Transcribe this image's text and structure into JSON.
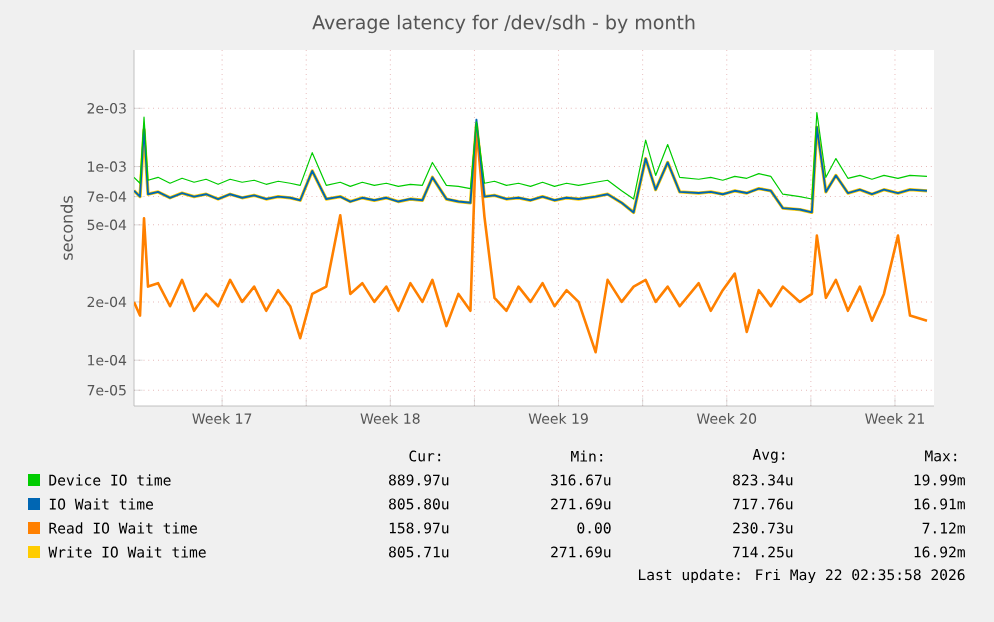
{
  "chart_data": {
    "type": "line",
    "title": "Average latency for /dev/sdh - by month",
    "ylabel": "seconds",
    "log": "y",
    "grid": true,
    "legend": "bottom",
    "xlim": [
      "2026-04-19T20:00",
      "2026-05-23T03:00"
    ],
    "ylim": [
      5.8e-05,
      0.004
    ],
    "xticks": [
      {
        "value": "2026-04-23T12:00",
        "label": "Week 17"
      },
      {
        "value": "2026-04-27T00:00",
        "label": null
      },
      {
        "value": "2026-04-30T12:00",
        "label": "Week 18"
      },
      {
        "value": "2026-05-04T00:00",
        "label": null
      },
      {
        "value": "2026-05-07T12:00",
        "label": "Week 19"
      },
      {
        "value": "2026-05-11T00:00",
        "label": null
      },
      {
        "value": "2026-05-14T12:00",
        "label": "Week 20"
      },
      {
        "value": "2026-05-18T00:00",
        "label": null
      },
      {
        "value": "2026-05-21T12:00",
        "label": "Week 21"
      }
    ],
    "yticks": [
      {
        "value": 7e-05,
        "label": "7e-05"
      },
      {
        "value": 0.0001,
        "label": "1e-04"
      },
      {
        "value": 0.0002,
        "label": "2e-04"
      },
      {
        "value": 0.0005,
        "label": "5e-04"
      },
      {
        "value": 0.0007,
        "label": "7e-04"
      },
      {
        "value": 0.001,
        "label": "1e-03"
      },
      {
        "value": 0.002,
        "label": "2e-03"
      }
    ],
    "x": [
      "2026-04-19T20:00",
      "2026-04-20T02:00",
      "2026-04-20T06:00",
      "2026-04-20T10:00",
      "2026-04-20T20:00",
      "2026-04-21T08:00",
      "2026-04-21T20:00",
      "2026-04-22T08:00",
      "2026-04-22T20:00",
      "2026-04-23T08:00",
      "2026-04-23T20:00",
      "2026-04-24T08:00",
      "2026-04-24T20:00",
      "2026-04-25T08:00",
      "2026-04-25T20:00",
      "2026-04-26T08:00",
      "2026-04-26T18:00",
      "2026-04-27T06:00",
      "2026-04-27T20:00",
      "2026-04-28T10:00",
      "2026-04-28T20:00",
      "2026-04-29T08:00",
      "2026-04-29T20:00",
      "2026-04-30T08:00",
      "2026-04-30T20:00",
      "2026-05-01T08:00",
      "2026-05-01T20:00",
      "2026-05-02T06:00",
      "2026-05-02T20:00",
      "2026-05-03T08:00",
      "2026-05-03T20:00",
      "2026-05-04T02:00",
      "2026-05-04T10:00",
      "2026-05-04T20:00",
      "2026-05-05T08:00",
      "2026-05-05T20:00",
      "2026-05-06T08:00",
      "2026-05-06T20:00",
      "2026-05-07T08:00",
      "2026-05-07T20:00",
      "2026-05-08T08:00",
      "2026-05-09T01:00",
      "2026-05-09T13:00",
      "2026-05-10T03:00",
      "2026-05-10T15:00",
      "2026-05-11T03:00",
      "2026-05-11T13:00",
      "2026-05-12T01:00",
      "2026-05-12T13:00",
      "2026-05-13T08:00",
      "2026-05-13T20:00",
      "2026-05-14T08:00",
      "2026-05-14T20:00",
      "2026-05-15T08:00",
      "2026-05-15T20:00",
      "2026-05-16T08:00",
      "2026-05-16T20:00",
      "2026-05-17T13:00",
      "2026-05-18T01:00",
      "2026-05-18T06:00",
      "2026-05-18T15:00",
      "2026-05-19T01:00",
      "2026-05-19T13:00",
      "2026-05-20T01:00",
      "2026-05-20T13:00",
      "2026-05-21T01:00",
      "2026-05-21T15:00",
      "2026-05-22T03:00",
      "2026-05-22T20:00"
    ],
    "series": [
      {
        "name": "Device IO time",
        "color": "#00cc00",
        "values": [
          0.00088,
          0.00082,
          0.0018,
          0.00085,
          0.00088,
          0.00082,
          0.00087,
          0.00083,
          0.00086,
          0.00081,
          0.00086,
          0.00083,
          0.00085,
          0.00081,
          0.00084,
          0.00082,
          0.0008,
          0.00118,
          0.0008,
          0.00083,
          0.00079,
          0.00083,
          0.0008,
          0.00082,
          0.00079,
          0.00081,
          0.0008,
          0.00105,
          0.0008,
          0.00079,
          0.00077,
          0.0017,
          0.00082,
          0.00084,
          0.0008,
          0.00082,
          0.00079,
          0.00083,
          0.00079,
          0.00082,
          0.0008,
          0.00083,
          0.00085,
          0.00075,
          0.00068,
          0.00137,
          0.0009,
          0.0013,
          0.00088,
          0.00086,
          0.00088,
          0.00085,
          0.00089,
          0.00087,
          0.00092,
          0.00089,
          0.00072,
          0.0007,
          0.00068,
          0.0019,
          0.00088,
          0.0011,
          0.00087,
          0.0009,
          0.00086,
          0.0009,
          0.00087,
          0.0009,
          0.00089
        ]
      },
      {
        "name": "IO Wait time",
        "color": "#0066b3",
        "values": [
          0.00075,
          0.0007,
          0.0016,
          0.00072,
          0.00074,
          0.00069,
          0.00073,
          0.0007,
          0.00072,
          0.00068,
          0.00072,
          0.00069,
          0.00071,
          0.00068,
          0.0007,
          0.00069,
          0.00067,
          0.00095,
          0.00068,
          0.0007,
          0.00066,
          0.00069,
          0.00067,
          0.00069,
          0.00066,
          0.00068,
          0.00067,
          0.00088,
          0.00068,
          0.00066,
          0.00065,
          0.00175,
          0.0007,
          0.00071,
          0.00068,
          0.00069,
          0.00067,
          0.0007,
          0.00067,
          0.00069,
          0.00068,
          0.0007,
          0.00072,
          0.00065,
          0.00058,
          0.0011,
          0.00076,
          0.00105,
          0.00074,
          0.00073,
          0.00074,
          0.00072,
          0.00075,
          0.00073,
          0.00077,
          0.00075,
          0.00061,
          0.0006,
          0.00058,
          0.0016,
          0.00074,
          0.0009,
          0.00073,
          0.00076,
          0.00072,
          0.00076,
          0.00073,
          0.00076,
          0.00075
        ]
      },
      {
        "name": "Read IO Wait time",
        "color": "#ff8000",
        "values": [
          0.0002,
          0.00017,
          0.00054,
          0.00024,
          0.00025,
          0.00019,
          0.00026,
          0.00018,
          0.00022,
          0.00019,
          0.00026,
          0.0002,
          0.00024,
          0.00018,
          0.00023,
          0.00019,
          0.00013,
          0.00022,
          0.00024,
          0.00056,
          0.00022,
          0.00025,
          0.0002,
          0.00024,
          0.00018,
          0.00025,
          0.0002,
          0.00026,
          0.00015,
          0.00022,
          0.00018,
          0.0016,
          0.00055,
          0.00021,
          0.00018,
          0.00024,
          0.0002,
          0.00025,
          0.00019,
          0.00023,
          0.0002,
          0.00011,
          0.00026,
          0.0002,
          0.00024,
          0.00026,
          0.0002,
          0.00024,
          0.00019,
          0.00025,
          0.00018,
          0.00023,
          0.00028,
          0.00014,
          0.00023,
          0.00019,
          0.00024,
          0.0002,
          0.00022,
          0.00044,
          0.00021,
          0.00026,
          0.00018,
          0.00024,
          0.00016,
          0.00022,
          0.00044,
          0.00017,
          0.00016
        ]
      },
      {
        "name": "Write IO Wait time",
        "color": "#ffcc00",
        "values": [
          0.00075,
          0.0007,
          0.00155,
          0.00072,
          0.00074,
          0.00069,
          0.00073,
          0.0007,
          0.00072,
          0.00068,
          0.00072,
          0.00069,
          0.00071,
          0.00068,
          0.0007,
          0.00069,
          0.00067,
          0.00095,
          0.00068,
          0.0007,
          0.00066,
          0.00069,
          0.00067,
          0.00069,
          0.00066,
          0.00068,
          0.00067,
          0.00088,
          0.00068,
          0.00066,
          0.00065,
          0.00165,
          0.0007,
          0.00071,
          0.00068,
          0.00069,
          0.00067,
          0.0007,
          0.00067,
          0.00069,
          0.00068,
          0.0007,
          0.00072,
          0.00065,
          0.00058,
          0.0011,
          0.00076,
          0.00105,
          0.00074,
          0.00073,
          0.00074,
          0.00072,
          0.00075,
          0.00073,
          0.00077,
          0.00075,
          0.00061,
          0.0006,
          0.00058,
          0.0016,
          0.00074,
          0.0009,
          0.00073,
          0.00076,
          0.00072,
          0.00076,
          0.00073,
          0.00076,
          0.00075
        ]
      }
    ],
    "annotations": [
      "Cur:",
      "Min:",
      "Avg:",
      "Max:",
      "889.97u",
      "316.67u",
      "823.34u",
      "19.99m",
      "805.80u",
      "271.69u",
      "717.76u",
      "16.91m",
      "158.97u",
      "0.00",
      "230.73u",
      "7.12m",
      "805.71u",
      "271.69u",
      "714.25u",
      "16.92m",
      "Last update: Fri May 22 02:35:58 2026"
    ]
  }
}
